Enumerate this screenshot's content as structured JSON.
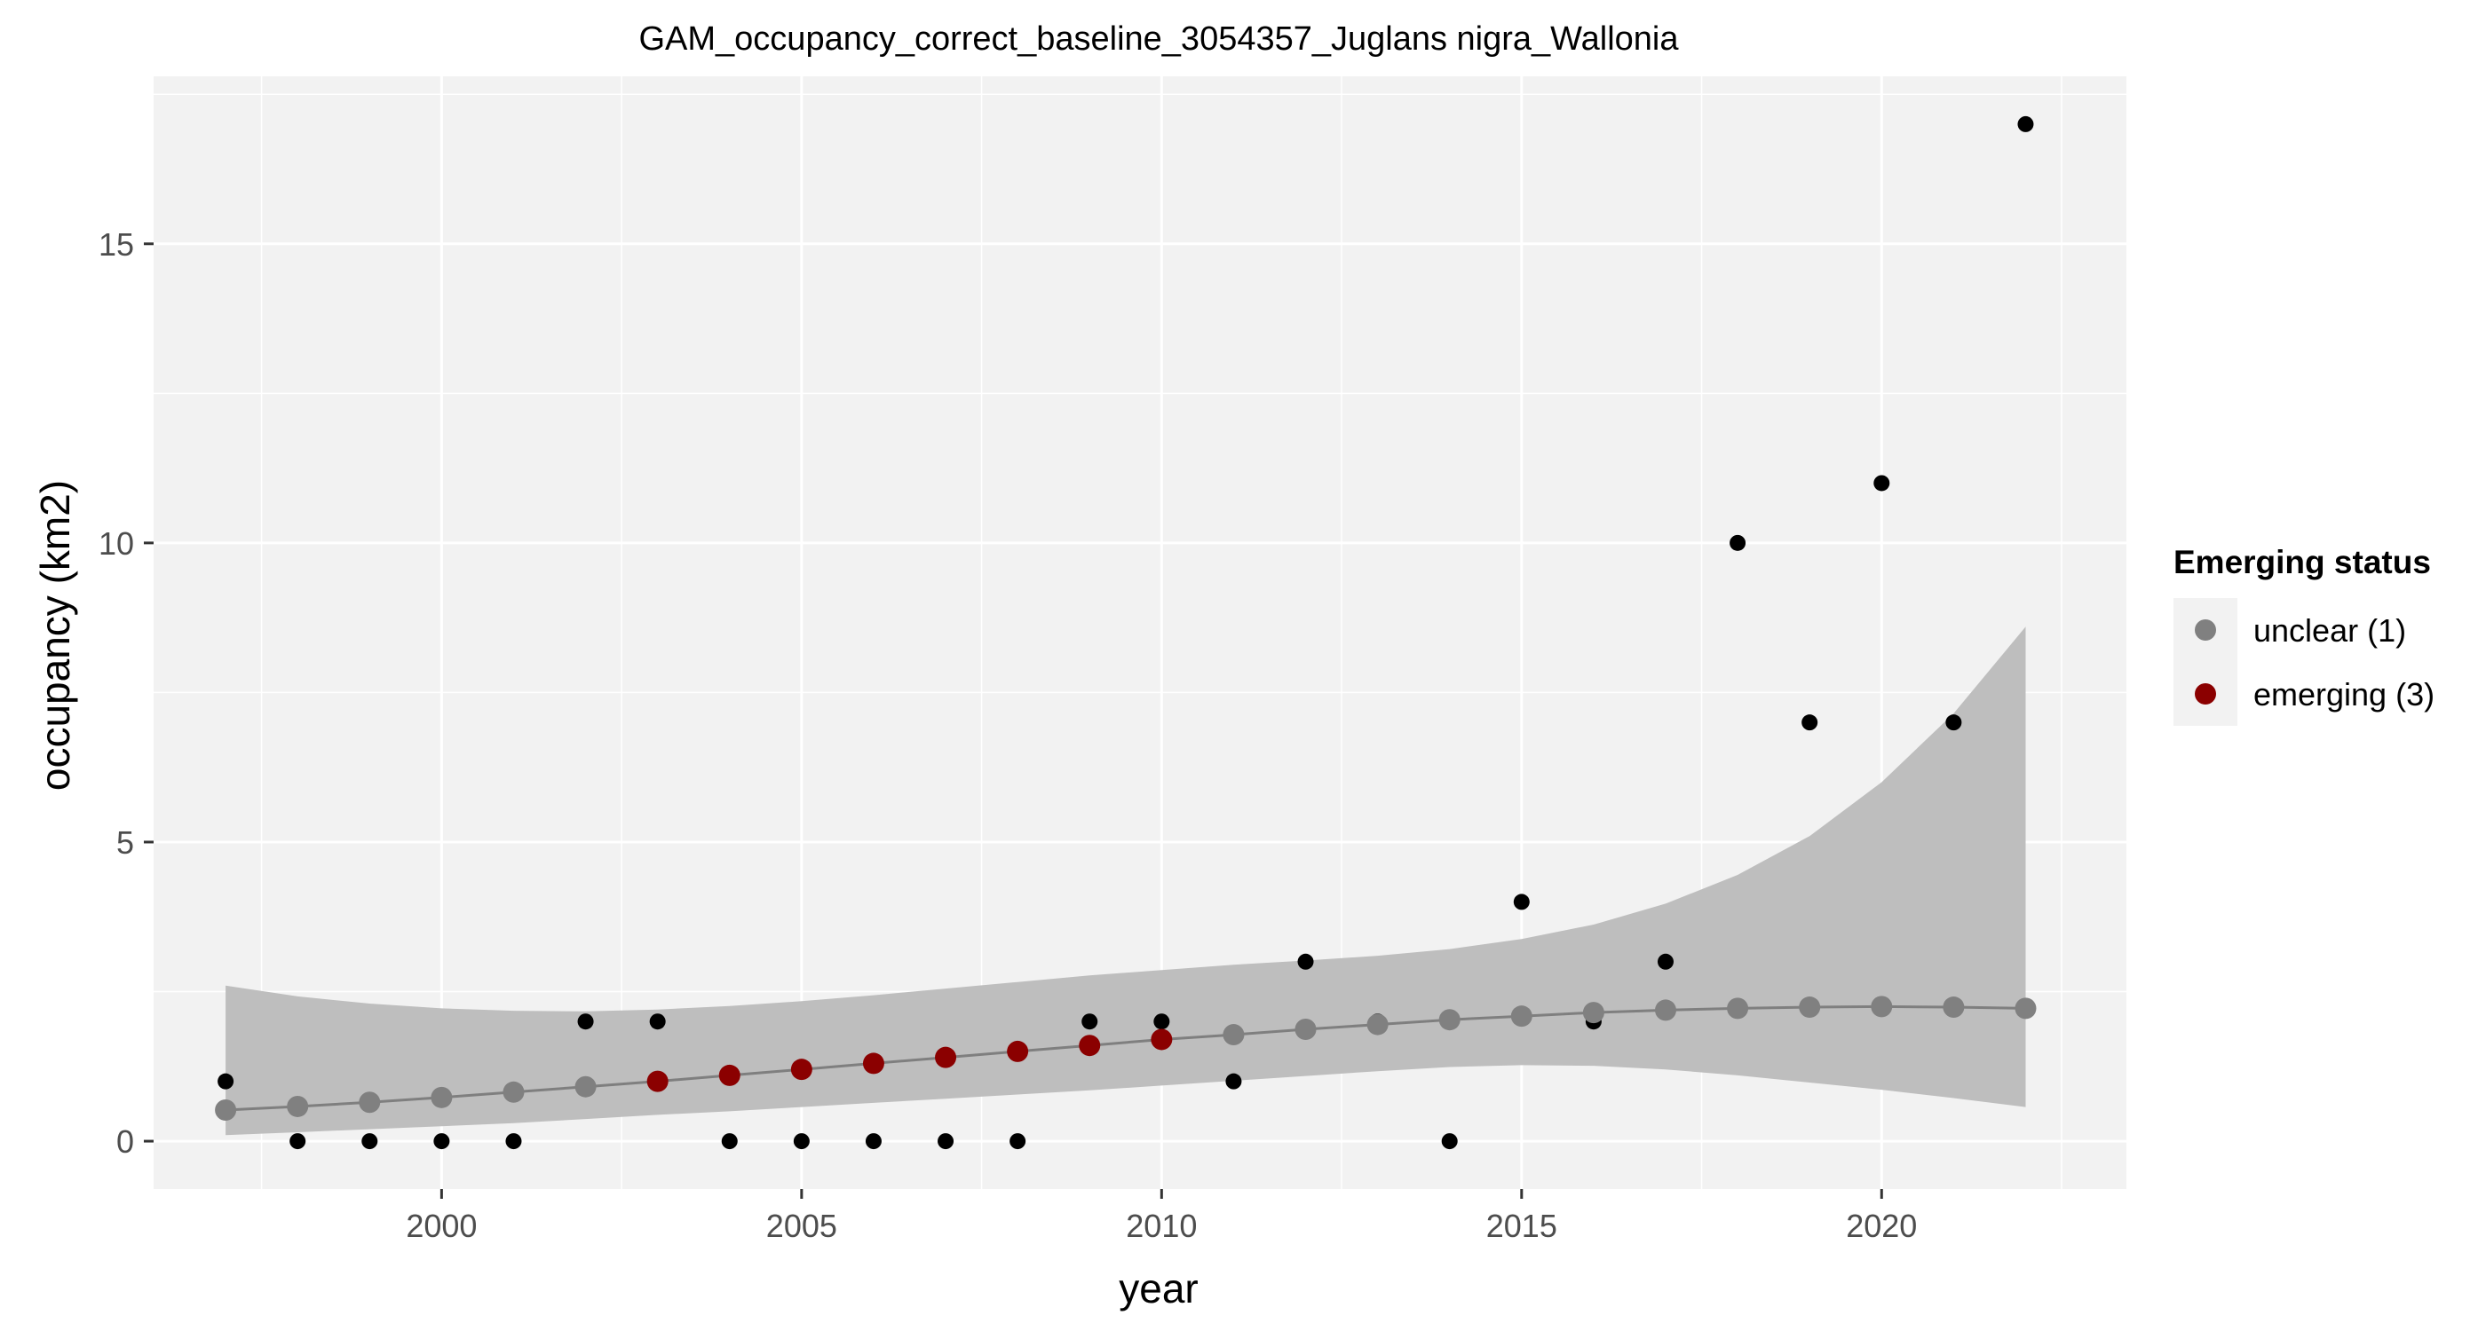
{
  "chart_data": {
    "type": "scatter",
    "title": "GAM_occupancy_correct_baseline_3054357_Juglans nigra_Wallonia",
    "xlabel": "year",
    "ylabel": "occupancy (km2)",
    "xlim": [
      1996.0,
      2023.4
    ],
    "ylim": [
      -0.8,
      17.8
    ],
    "x_ticks": [
      2000,
      2005,
      2010,
      2015,
      2020
    ],
    "y_ticks": [
      0,
      5,
      10,
      15
    ],
    "grid": true,
    "background": "#f2f2f2",
    "legend": {
      "title": "Emerging status",
      "position": "right",
      "entries": [
        {
          "label": "unclear (1)",
          "color": "#808080"
        },
        {
          "label": "emerging (3)",
          "color": "#8b0000"
        }
      ]
    },
    "observed": {
      "color": "#000000",
      "x": [
        1997,
        1998,
        1999,
        2000,
        2001,
        2002,
        2003,
        2004,
        2005,
        2006,
        2007,
        2008,
        2009,
        2010,
        2011,
        2012,
        2013,
        2014,
        2015,
        2016,
        2017,
        2018,
        2019,
        2020,
        2021,
        2022
      ],
      "y": [
        1,
        0,
        0,
        0,
        0,
        2,
        2,
        0,
        0,
        0,
        0,
        0,
        2,
        2,
        1,
        3,
        2,
        0,
        4,
        2,
        3,
        10,
        7,
        11,
        7,
        17
      ]
    },
    "fitted": {
      "line_color": "#7f7f7f",
      "x": [
        1997,
        1998,
        1999,
        2000,
        2001,
        2002,
        2003,
        2004,
        2005,
        2006,
        2007,
        2008,
        2009,
        2010,
        2011,
        2012,
        2013,
        2014,
        2015,
        2016,
        2017,
        2018,
        2019,
        2020,
        2021,
        2022
      ],
      "y": [
        0.52,
        0.58,
        0.65,
        0.73,
        0.82,
        0.91,
        1.0,
        1.1,
        1.2,
        1.3,
        1.4,
        1.5,
        1.6,
        1.7,
        1.78,
        1.87,
        1.95,
        2.03,
        2.09,
        2.15,
        2.19,
        2.22,
        2.24,
        2.25,
        2.24,
        2.22
      ],
      "status": [
        "unclear (1)",
        "unclear (1)",
        "unclear (1)",
        "unclear (1)",
        "unclear (1)",
        "unclear (1)",
        "emerging (3)",
        "emerging (3)",
        "emerging (3)",
        "emerging (3)",
        "emerging (3)",
        "emerging (3)",
        "emerging (3)",
        "emerging (3)",
        "unclear (1)",
        "unclear (1)",
        "unclear (1)",
        "unclear (1)",
        "unclear (1)",
        "unclear (1)",
        "unclear (1)",
        "unclear (1)",
        "unclear (1)",
        "unclear (1)",
        "unclear (1)",
        "unclear (1)"
      ]
    },
    "confidence_band": {
      "color": "#bebebe",
      "x": [
        1997,
        1998,
        1999,
        2000,
        2001,
        2002,
        2003,
        2004,
        2005,
        2006,
        2007,
        2008,
        2009,
        2010,
        2011,
        2012,
        2013,
        2014,
        2015,
        2016,
        2017,
        2018,
        2019,
        2020,
        2021,
        2022
      ],
      "lower": [
        0.1,
        0.15,
        0.2,
        0.25,
        0.3,
        0.37,
        0.44,
        0.5,
        0.57,
        0.64,
        0.71,
        0.78,
        0.85,
        0.93,
        1.01,
        1.09,
        1.17,
        1.24,
        1.27,
        1.26,
        1.2,
        1.1,
        0.98,
        0.86,
        0.72,
        0.57
      ],
      "upper": [
        2.6,
        2.42,
        2.3,
        2.22,
        2.18,
        2.17,
        2.2,
        2.26,
        2.34,
        2.44,
        2.55,
        2.66,
        2.77,
        2.86,
        2.95,
        3.02,
        3.1,
        3.21,
        3.38,
        3.62,
        3.97,
        4.45,
        5.1,
        6.0,
        7.15,
        8.6
      ]
    }
  }
}
